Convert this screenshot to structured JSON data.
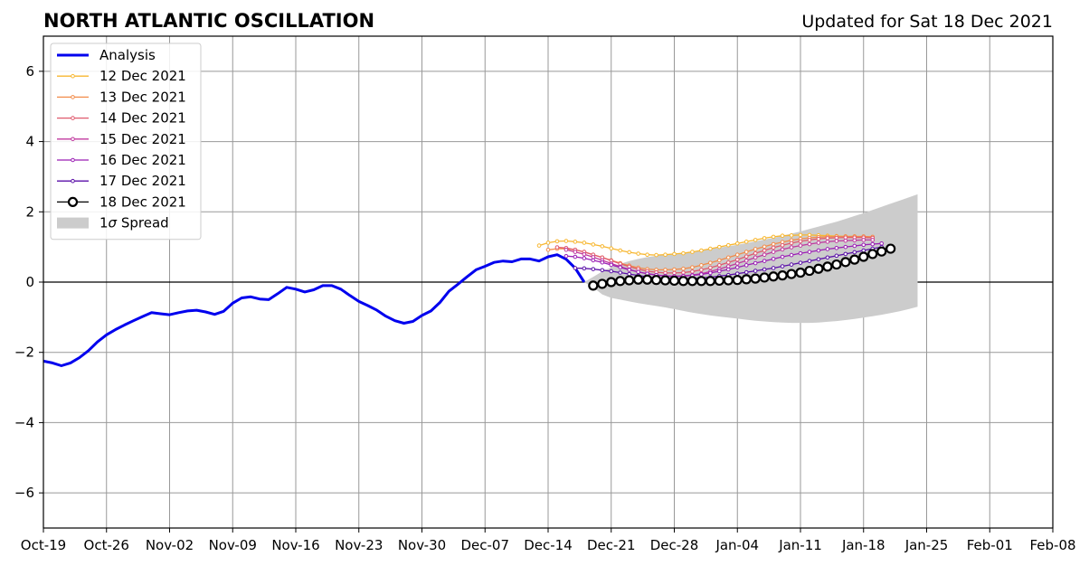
{
  "chart_data": {
    "type": "line",
    "title": "NORTH ATLANTIC OSCILLATION",
    "subtitle": "Updated for Sat 18 Dec 2021",
    "xlabel": "",
    "ylabel": "",
    "xlim": [
      "2021-10-19",
      "2022-02-08"
    ],
    "ylim": [
      -7,
      7
    ],
    "x_ticks": [
      "Oct-19",
      "Oct-26",
      "Nov-02",
      "Nov-09",
      "Nov-16",
      "Nov-23",
      "Nov-30",
      "Dec-07",
      "Dec-14",
      "Dec-21",
      "Dec-28",
      "Jan-04",
      "Jan-11",
      "Jan-18",
      "Jan-25",
      "Feb-01",
      "Feb-08"
    ],
    "y_ticks": [
      -6,
      -4,
      -2,
      0,
      2,
      4,
      6
    ],
    "grid": true,
    "legend_position": "top-left",
    "zero_line": true,
    "analysis": {
      "name": "Analysis",
      "color": "#0000ee",
      "start": "2021-10-19",
      "values": [
        -2.25,
        -2.3,
        -2.38,
        -2.3,
        -2.15,
        -1.95,
        -1.7,
        -1.5,
        -1.35,
        -1.22,
        -1.1,
        -0.98,
        -0.87,
        -0.9,
        -0.93,
        -0.87,
        -0.82,
        -0.8,
        -0.85,
        -0.92,
        -0.83,
        -0.6,
        -0.45,
        -0.42,
        -0.48,
        -0.5,
        -0.33,
        -0.15,
        -0.2,
        -0.28,
        -0.22,
        -0.1,
        -0.1,
        -0.2,
        -0.38,
        -0.55,
        -0.67,
        -0.8,
        -0.97,
        -1.1,
        -1.17,
        -1.12,
        -0.95,
        -0.82,
        -0.58,
        -0.26,
        -0.06,
        0.15,
        0.35,
        0.45,
        0.56,
        0.6,
        0.58,
        0.66,
        0.66,
        0.6,
        0.72,
        0.78,
        0.65,
        0.4,
        0.0
      ]
    },
    "forecasts": [
      {
        "name": "12 Dec 2021",
        "color": "#f7b731",
        "start": "2021-12-13",
        "values": [
          1.04,
          1.12,
          1.16,
          1.17,
          1.15,
          1.12,
          1.07,
          1.02,
          0.96,
          0.9,
          0.85,
          0.81,
          0.78,
          0.77,
          0.78,
          0.8,
          0.82,
          0.86,
          0.9,
          0.95,
          1.0,
          1.05,
          1.1,
          1.15,
          1.2,
          1.25,
          1.29,
          1.32,
          1.33,
          1.34,
          1.34,
          1.33,
          1.32,
          1.31,
          1.3,
          1.3,
          1.29,
          1.28
        ]
      },
      {
        "name": "13 Dec 2021",
        "color": "#f28c4a",
        "start": "2021-12-14",
        "values": [
          0.92,
          0.95,
          0.95,
          0.92,
          0.86,
          0.78,
          0.7,
          0.62,
          0.54,
          0.47,
          0.41,
          0.37,
          0.35,
          0.35,
          0.36,
          0.38,
          0.42,
          0.48,
          0.55,
          0.62,
          0.7,
          0.78,
          0.86,
          0.94,
          1.01,
          1.08,
          1.14,
          1.19,
          1.23,
          1.26,
          1.28,
          1.29,
          1.3,
          1.3,
          1.3,
          1.3,
          1.29
        ]
      },
      {
        "name": "14 Dec 2021",
        "color": "#e05a6e",
        "start": "2021-12-15",
        "values": [
          0.99,
          0.97,
          0.92,
          0.86,
          0.78,
          0.7,
          0.61,
          0.52,
          0.44,
          0.37,
          0.31,
          0.28,
          0.26,
          0.26,
          0.27,
          0.3,
          0.35,
          0.41,
          0.48,
          0.56,
          0.64,
          0.73,
          0.82,
          0.9,
          0.98,
          1.05,
          1.11,
          1.16,
          1.2,
          1.23,
          1.25,
          1.26,
          1.27,
          1.27,
          1.27,
          1.26
        ]
      },
      {
        "name": "15 Dec 2021",
        "color": "#c0399f",
        "start": "2021-12-16",
        "values": [
          0.92,
          0.86,
          0.79,
          0.71,
          0.62,
          0.53,
          0.44,
          0.36,
          0.29,
          0.24,
          0.2,
          0.18,
          0.17,
          0.18,
          0.2,
          0.24,
          0.3,
          0.37,
          0.45,
          0.53,
          0.61,
          0.7,
          0.78,
          0.86,
          0.93,
          0.99,
          1.04,
          1.08,
          1.12,
          1.15,
          1.17,
          1.18,
          1.19,
          1.2,
          1.2
        ]
      },
      {
        "name": "16 Dec 2021",
        "color": "#9b1fb5",
        "start": "2021-12-16",
        "values": [
          0.74,
          0.72,
          0.68,
          0.62,
          0.56,
          0.49,
          0.42,
          0.35,
          0.29,
          0.24,
          0.2,
          0.17,
          0.16,
          0.17,
          0.19,
          0.22,
          0.26,
          0.31,
          0.36,
          0.42,
          0.48,
          0.54,
          0.6,
          0.66,
          0.72,
          0.77,
          0.82,
          0.86,
          0.9,
          0.94,
          0.97,
          1.0,
          1.03,
          1.06,
          1.08,
          1.1
        ]
      },
      {
        "name": "17 Dec 2021",
        "color": "#5a0fa8",
        "start": "2021-12-17",
        "values": [
          0.4,
          0.39,
          0.37,
          0.34,
          0.31,
          0.27,
          0.23,
          0.19,
          0.15,
          0.12,
          0.1,
          0.09,
          0.09,
          0.1,
          0.12,
          0.14,
          0.17,
          0.2,
          0.24,
          0.28,
          0.32,
          0.36,
          0.4,
          0.45,
          0.5,
          0.55,
          0.6,
          0.65,
          0.7,
          0.75,
          0.8,
          0.85,
          0.9,
          0.95,
          1.0
        ]
      },
      {
        "name": "18 Dec 2021",
        "color": "#000000",
        "start": "2021-12-19",
        "values": [
          -0.1,
          -0.05,
          0.0,
          0.03,
          0.05,
          0.07,
          0.07,
          0.06,
          0.05,
          0.04,
          0.03,
          0.03,
          0.03,
          0.03,
          0.04,
          0.05,
          0.06,
          0.08,
          0.1,
          0.13,
          0.16,
          0.19,
          0.23,
          0.27,
          0.32,
          0.38,
          0.44,
          0.5,
          0.57,
          0.64,
          0.72,
          0.8,
          0.87,
          0.95
        ]
      }
    ],
    "spread": {
      "name": "1σ Spread",
      "label_prefix": "1",
      "label_sigma": "σ",
      "label_suffix": " Spread",
      "color": "#cccccc",
      "start": "2021-12-18",
      "upper": [
        0.0,
        0.15,
        0.3,
        0.42,
        0.52,
        0.6,
        0.66,
        0.71,
        0.75,
        0.78,
        0.81,
        0.84,
        0.87,
        0.9,
        0.94,
        0.98,
        1.02,
        1.06,
        1.11,
        1.16,
        1.21,
        1.26,
        1.32,
        1.38,
        1.44,
        1.51,
        1.58,
        1.65,
        1.72,
        1.8,
        1.88,
        1.96,
        2.05,
        2.14,
        2.23,
        2.32,
        2.41,
        2.5
      ],
      "lower": [
        0.0,
        -0.15,
        -0.35,
        -0.45,
        -0.5,
        -0.55,
        -0.6,
        -0.64,
        -0.68,
        -0.72,
        -0.77,
        -0.82,
        -0.87,
        -0.91,
        -0.95,
        -0.98,
        -1.01,
        -1.04,
        -1.07,
        -1.1,
        -1.12,
        -1.14,
        -1.15,
        -1.16,
        -1.16,
        -1.16,
        -1.15,
        -1.13,
        -1.11,
        -1.08,
        -1.05,
        -1.01,
        -0.97,
        -0.93,
        -0.88,
        -0.83,
        -0.77,
        -0.7
      ]
    }
  }
}
